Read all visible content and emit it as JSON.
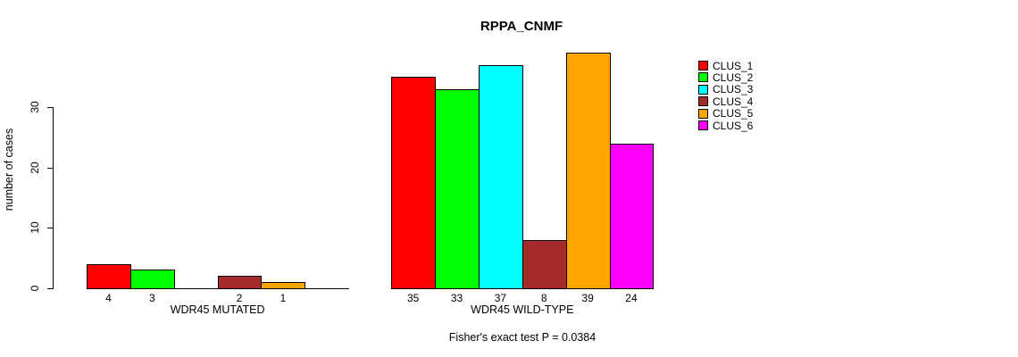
{
  "chart_data": {
    "type": "bar",
    "title": "RPPA_CNMF",
    "ylabel": "number of cases",
    "xlabel": "",
    "yticks": [
      0,
      10,
      20,
      30
    ],
    "ylim": [
      0,
      39
    ],
    "grid": false,
    "legend_position": "right",
    "series": [
      {
        "name": "CLUS_1",
        "color": "#FF0000"
      },
      {
        "name": "CLUS_2",
        "color": "#00FF00"
      },
      {
        "name": "CLUS_3",
        "color": "#00FFFF"
      },
      {
        "name": "CLUS_4",
        "color": "#A52A2A"
      },
      {
        "name": "CLUS_5",
        "color": "#FFA500"
      },
      {
        "name": "CLUS_6",
        "color": "#FF00FF"
      }
    ],
    "groups": [
      {
        "label": "WDR45 MUTATED",
        "values": [
          4,
          3,
          0,
          2,
          1,
          0
        ]
      },
      {
        "label": "WDR45 WILD-TYPE",
        "values": [
          35,
          33,
          37,
          8,
          39,
          24
        ]
      }
    ],
    "bar_value_labels_shown": true,
    "zero_height_bars_hidden": true,
    "annotation": "Fisher's exact test P = 0.0384"
  },
  "colors": {
    "background": "#FFFFFF",
    "axis": "#000000",
    "text": "#000000"
  }
}
